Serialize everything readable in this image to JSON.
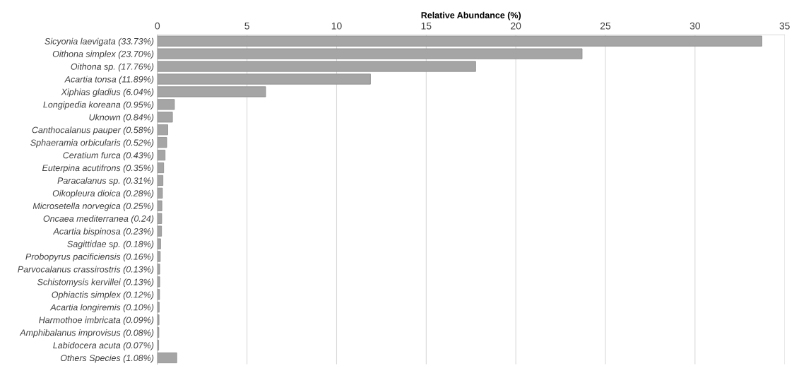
{
  "chart_data": {
    "type": "bar",
    "orientation": "horizontal",
    "xlabel": "Relative Abundance (%)",
    "categories": [
      "Sicyonia laevigata (33.73%)",
      "Oithona simplex (23.70%)",
      "Oithona sp. (17.76%)",
      "Acartia tonsa (11.89%)",
      "Xiphias gladius (6.04%)",
      "Longipedia koreana (0.95%)",
      "Uknown (0.84%)",
      "Canthocalanus pauper (0.58%)",
      "Sphaeramia orbicularis (0.52%)",
      "Ceratium furca (0.43%)",
      "Euterpina acutifrons (0.35%)",
      "Paracalanus sp. (0.31%)",
      "Oikopleura dioica (0.28%)",
      "Microsetella norvegica (0.25%)",
      "Oncaea mediterranea (0.24)",
      "Acartia bispinosa (0.23%)",
      "Sagittidae sp. (0.18%)",
      "Probopyrus pacificiensis (0.16%)",
      "Parvocalanus crassirostris (0.13%)",
      "Schistomysis kervillei (0.13%)",
      "Ophiactis simplex (0.12%)",
      "Acartia longiremis (0.10%)",
      "Harmothoe imbricata (0.09%)",
      "Amphibalanus improvisus (0.08%)",
      "Labidocera acuta (0.07%)",
      "Others Species (1.08%)"
    ],
    "values": [
      33.73,
      23.7,
      17.76,
      11.89,
      6.04,
      0.95,
      0.84,
      0.58,
      0.52,
      0.43,
      0.35,
      0.31,
      0.28,
      0.25,
      0.24,
      0.23,
      0.18,
      0.16,
      0.13,
      0.13,
      0.12,
      0.1,
      0.09,
      0.08,
      0.07,
      1.08
    ],
    "color": "#a5a5a5",
    "xlim": [
      0,
      35
    ],
    "xticks": [
      0,
      5,
      10,
      15,
      20,
      25,
      30,
      35
    ],
    "grid": "x",
    "legend": false
  }
}
